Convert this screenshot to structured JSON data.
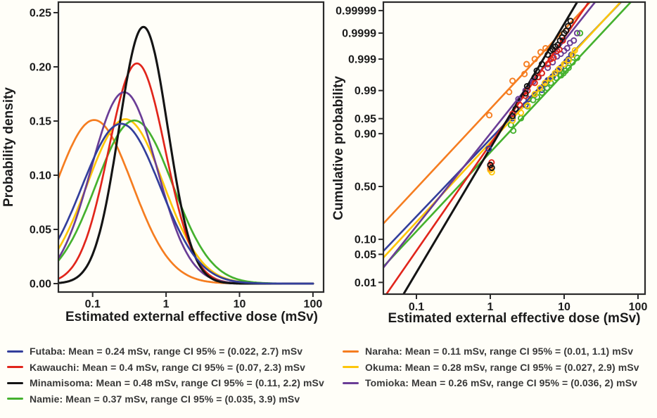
{
  "figure": {
    "background_color": "#fffef8",
    "axis_color": "#2a2a2a",
    "text_color": "#1b1b1b"
  },
  "chart_data": [
    {
      "type": "line",
      "title": "",
      "xlabel": "Estimated external effective dose (mSv)",
      "ylabel": "Probability density",
      "x_scale": "log",
      "x_ticks": [
        0.1,
        1,
        10,
        100
      ],
      "x_tick_labels": [
        "0.1",
        "1",
        "10",
        "100"
      ],
      "x_range": [
        0.0342,
        100
      ],
      "y_ticks": [
        0.0,
        0.05,
        0.1,
        0.15,
        0.2,
        0.25
      ],
      "y_tick_labels": [
        "0.00",
        "0.05",
        "0.10",
        "0.15",
        "0.20",
        "0.25"
      ],
      "ylim": [
        -0.004,
        0.26
      ],
      "grid": false,
      "curve_model": "lognormal_density_vs_log_dose",
      "peak_scale": 0.181,
      "series": [
        {
          "name": "Futaba",
          "color": "#333e9b",
          "mean_mSv": 0.24,
          "ci95_mSv": [
            0.022,
            2.7
          ],
          "peak_point": [
            0.24,
            0.148
          ]
        },
        {
          "name": "Kawauchi",
          "color": "#e1251b",
          "mean_mSv": 0.4,
          "ci95_mSv": [
            0.07,
            2.3
          ],
          "peak_point": [
            0.4,
            0.203
          ]
        },
        {
          "name": "Minamisoma",
          "color": "#141414",
          "mean_mSv": 0.48,
          "ci95_mSv": [
            0.11,
            2.2
          ],
          "peak_point": [
            0.49,
            0.237
          ]
        },
        {
          "name": "Namie",
          "color": "#45b12e",
          "mean_mSv": 0.37,
          "ci95_mSv": [
            0.035,
            3.9
          ],
          "peak_point": [
            0.37,
            0.151
          ]
        },
        {
          "name": "Naraha",
          "color": "#f57d20",
          "mean_mSv": 0.11,
          "ci95_mSv": [
            0.01,
            1.1
          ],
          "peak_point": [
            0.105,
            0.151
          ]
        },
        {
          "name": "Okuma",
          "color": "#fdc60a",
          "mean_mSv": 0.28,
          "ci95_mSv": [
            0.027,
            2.9
          ],
          "peak_point": [
            0.28,
            0.152
          ]
        },
        {
          "name": "Tomioka",
          "color": "#6a3d96",
          "mean_mSv": 0.26,
          "ci95_mSv": [
            0.036,
            2
          ],
          "peak_point": [
            0.27,
            0.177
          ]
        }
      ],
      "draw_order": [
        "Naraha",
        "Okuma",
        "Namie",
        "Kawauchi",
        "Tomioka",
        "Minamisoma",
        "Futaba"
      ]
    },
    {
      "type": "scatter",
      "title": "",
      "xlabel": "Estimated external effective dose (mSv)",
      "ylabel": "Cumulative probability",
      "x_scale": "log",
      "x_ticks": [
        0.1,
        1,
        10,
        100
      ],
      "x_tick_labels": [
        "0.1",
        "1",
        "10",
        "100"
      ],
      "x_range": [
        0.0357,
        124
      ],
      "y_scale": "probit",
      "y_ticks": [
        0.99999,
        0.9999,
        0.999,
        0.99,
        0.95,
        0.9,
        0.5,
        0.1,
        0.05,
        0.01
      ],
      "y_tick_labels": [
        "0.99999",
        "0.9999",
        "0.999",
        "0.99",
        "0.95",
        "0.90",
        "0.50",
        "0.10",
        "0.05",
        "0.01"
      ],
      "ylim_probit": [
        -2.611,
        4.47
      ],
      "grid": false,
      "fit_model": "lognormal_fit_line_from_ci95",
      "series": [
        {
          "name": "Futaba",
          "color": "#333e9b",
          "ci95_mSv": [
            0.022,
            2.7
          ],
          "points": [
            [
              0.95,
              0.82
            ],
            [
              2,
              0.951
            ],
            [
              3,
              0.976
            ],
            [
              3.3,
              0.983
            ],
            [
              4,
              0.987
            ],
            [
              5,
              0.9905
            ],
            [
              5.5,
              0.9935
            ],
            [
              6,
              0.995
            ],
            [
              7,
              0.9962
            ],
            [
              7.6,
              0.997
            ],
            [
              8.2,
              0.9975
            ],
            [
              9,
              0.998
            ],
            [
              10,
              0.9985
            ],
            [
              10.8,
              0.9988
            ],
            [
              11.5,
              0.999
            ],
            [
              12.5,
              0.9993
            ]
          ]
        },
        {
          "name": "Kawauchi",
          "color": "#e1251b",
          "ci95_mSv": [
            0.07,
            2.3
          ],
          "points": [
            [
              1,
              0.695
            ],
            [
              1.04,
              0.72
            ],
            [
              2,
              0.961
            ],
            [
              2.5,
              0.976
            ],
            [
              3,
              0.986
            ],
            [
              3.2,
              0.99
            ],
            [
              4,
              0.994
            ],
            [
              4.4,
              0.996
            ],
            [
              5,
              0.997
            ],
            [
              6,
              0.9985
            ],
            [
              6.6,
              0.999
            ],
            [
              7.2,
              0.9991
            ],
            [
              8,
              0.9995
            ],
            [
              8.6,
              0.99955
            ],
            [
              9.6,
              0.9998
            ]
          ]
        },
        {
          "name": "Minamisoma",
          "color": "#141414",
          "ci95_mSv": [
            0.11,
            2.2
          ],
          "points": [
            [
              1,
              0.7
            ],
            [
              1.05,
              0.675
            ],
            [
              2,
              0.956
            ],
            [
              2.2,
              0.97
            ],
            [
              3,
              0.988
            ],
            [
              3.15,
              0.9925
            ],
            [
              4,
              0.996
            ],
            [
              4.25,
              0.9975
            ],
            [
              5,
              0.9985
            ],
            [
              6,
              0.9993
            ],
            [
              6.5,
              0.9995
            ],
            [
              7,
              0.99956
            ],
            [
              7.6,
              0.99965
            ],
            [
              8.2,
              0.9997
            ],
            [
              8.8,
              0.9998
            ],
            [
              9.4,
              0.99985
            ],
            [
              10,
              0.9999
            ],
            [
              10.6,
              0.99992
            ],
            [
              11.3,
              0.99995
            ],
            [
              12.2,
              0.99997
            ]
          ]
        },
        {
          "name": "Namie",
          "color": "#45b12e",
          "ci95_mSv": [
            0.035,
            3.9
          ],
          "points": [
            [
              1.9,
              0.932
            ],
            [
              2.05,
              0.912
            ],
            [
              2.6,
              0.951
            ],
            [
              3.2,
              0.974
            ],
            [
              3.8,
              0.982
            ],
            [
              4.3,
              0.985
            ],
            [
              5,
              0.9885
            ],
            [
              5.9,
              0.9915
            ],
            [
              6.6,
              0.994
            ],
            [
              7.8,
              0.9958
            ],
            [
              9.1,
              0.9965
            ],
            [
              9.8,
              0.997
            ],
            [
              10.5,
              0.9975
            ],
            [
              11.5,
              0.998
            ],
            [
              13,
              0.9987
            ],
            [
              15,
              0.9991
            ],
            [
              16.4,
              0.9999
            ]
          ]
        },
        {
          "name": "Naraha",
          "color": "#f57d20",
          "ci95_mSv": [
            0.01,
            1.1
          ],
          "points": [
            [
              0.97,
              0.958
            ],
            [
              1,
              0.67
            ],
            [
              1.8,
              0.989
            ],
            [
              2,
              0.9948
            ],
            [
              2.9,
              0.9968
            ],
            [
              3.1,
              0.9985
            ],
            [
              4,
              0.999
            ],
            [
              4.8,
              0.99944
            ],
            [
              5.6,
              0.9996
            ]
          ]
        },
        {
          "name": "Okuma",
          "color": "#fdc60a",
          "ci95_mSv": [
            0.027,
            2.9
          ],
          "points": [
            [
              1,
              0.655
            ],
            [
              1.05,
              0.635
            ],
            [
              2,
              0.945
            ],
            [
              2.6,
              0.963
            ],
            [
              3.2,
              0.975
            ],
            [
              4,
              0.9875
            ],
            [
              4.7,
              0.9915
            ],
            [
              5.5,
              0.994
            ],
            [
              6.5,
              0.9955
            ],
            [
              7.5,
              0.997
            ],
            [
              8.5,
              0.9978
            ],
            [
              10,
              0.9985
            ],
            [
              11.5,
              0.9989
            ],
            [
              13,
              0.9993
            ],
            [
              14,
              0.99952
            ]
          ]
        },
        {
          "name": "Tomioka",
          "color": "#6a3d96",
          "ci95_mSv": [
            0.036,
            2
          ],
          "points": [
            [
              2.4,
              0.983
            ],
            [
              3,
              0.99
            ],
            [
              3.8,
              0.9945
            ],
            [
              4.5,
              0.996
            ],
            [
              5,
              0.997
            ],
            [
              6,
              0.998
            ],
            [
              7,
              0.9987
            ],
            [
              8,
              0.9992
            ],
            [
              9,
              0.99935
            ],
            [
              10,
              0.9995
            ],
            [
              11,
              0.9996
            ],
            [
              12,
              0.99975
            ],
            [
              13.5,
              0.9998
            ],
            [
              15,
              0.9999
            ]
          ]
        }
      ],
      "draw_order": [
        "Futaba",
        "Namie",
        "Okuma",
        "Naraha",
        "Tomioka",
        "Kawauchi",
        "Minamisoma"
      ]
    }
  ],
  "legend": {
    "columns": [
      {
        "items": [
          {
            "name": "Futaba",
            "color": "#333e9b",
            "text": "Futaba: Mean = 0.24 mSv, range CI 95% = (0.022, 2.7) mSv"
          },
          {
            "name": "Kawauchi",
            "color": "#e1251b",
            "text": "Kawauchi: Mean = 0.4 mSv, range CI 95% = (0.07, 2.3) mSv"
          },
          {
            "name": "Minamisoma",
            "color": "#141414",
            "text": "Minamisoma: Mean = 0.48 mSv, range CI 95% = (0.11, 2.2) mSv"
          },
          {
            "name": "Namie",
            "color": "#45b12e",
            "text": "Namie: Mean = 0.37 mSv, range CI 95% = (0.035, 3.9) mSv"
          }
        ]
      },
      {
        "items": [
          {
            "name": "Naraha",
            "color": "#f57d20",
            "text": "Naraha: Mean = 0.11 mSv, range CI 95% = (0.01, 1.1) mSv"
          },
          {
            "name": "Okuma",
            "color": "#fdc60a",
            "text": "Okuma: Mean = 0.28 mSv, range CI 95% = (0.027, 2.9) mSv"
          },
          {
            "name": "Tomioka",
            "color": "#6a3d96",
            "text": "Tomioka: Mean = 0.26 mSv, range CI 95% = (0.036, 2) mSv"
          }
        ]
      }
    ]
  }
}
